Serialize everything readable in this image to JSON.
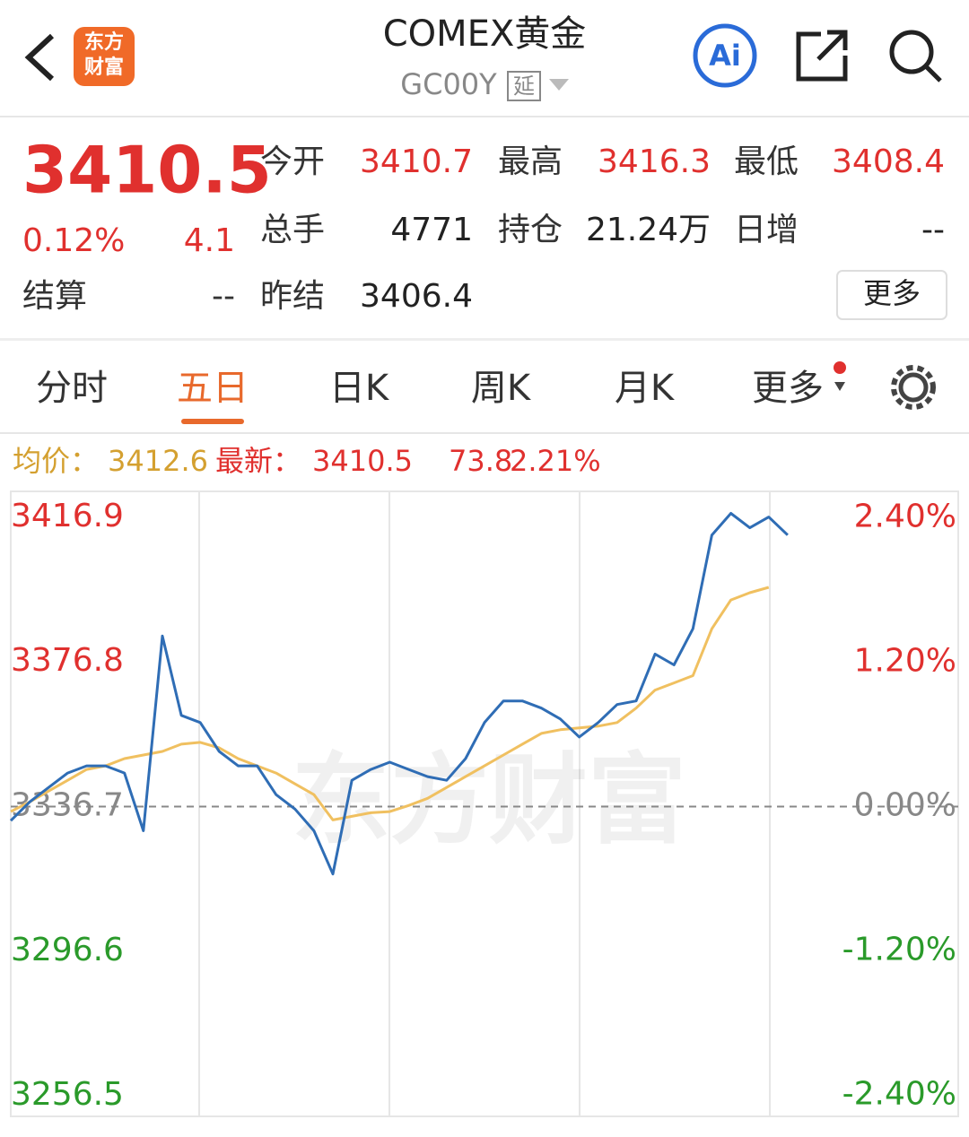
{
  "header": {
    "logo": [
      "东方",
      "财富"
    ],
    "title": "COMEX黄金",
    "code": "GC00Y",
    "delay_badge": "延"
  },
  "quote": {
    "price": "3410.5",
    "change_pct": "0.12%",
    "change": "4.1",
    "settle_label": "结算",
    "settle": "--",
    "fields": [
      {
        "label": "今开",
        "value": "3410.7"
      },
      {
        "label": "最高",
        "value": "3416.3"
      },
      {
        "label": "最低",
        "value": "3408.4"
      },
      {
        "label": "总手",
        "value": "4771"
      },
      {
        "label": "持仓",
        "value": "21.24万"
      },
      {
        "label": "日增",
        "value": "--"
      },
      {
        "label": "昨结",
        "value": "3406.4"
      }
    ],
    "more_button": "更多"
  },
  "tabs": {
    "items": [
      "分时",
      "五日",
      "日K",
      "周K",
      "月K",
      "更多"
    ],
    "active": 1
  },
  "info_bar": {
    "avg_label": "均价：",
    "avg": "3412.6",
    "latest_label": "最新：",
    "latest": "3410.5",
    "change": "73.8",
    "change_pct": "2.21%"
  },
  "chart": {
    "type": "line",
    "watermark": "东方财富",
    "ylim": [
      3250.8,
      3424.1
    ],
    "yticks": [
      3416.9,
      3376.8,
      3336.7,
      3296.6,
      3256.5
    ],
    "y2lim": [
      -2.574,
      2.619
    ],
    "y2ticks": [
      {
        "value": 2.4,
        "label": "2.40%"
      },
      {
        "value": 1.2,
        "label": "1.20%"
      },
      {
        "value": 0,
        "label": "0.00%"
      },
      {
        "value": -1.2,
        "label": "-1.20%"
      },
      {
        "value": -2.4,
        "label": "-2.40%"
      }
    ],
    "series": [
      {
        "name": "最新",
        "color": "#2f6db5",
        "values": [
          3332.8,
          3338,
          3342,
          3346,
          3348,
          3348,
          3346,
          3330,
          3384,
          3362,
          3360,
          3352,
          3348,
          3348,
          3340,
          3336,
          3330,
          3318,
          3344,
          3347,
          3349,
          3347,
          3345,
          3344,
          3350,
          3360,
          3366,
          3366,
          3364,
          3361,
          3356,
          3360,
          3365,
          3366,
          3379,
          3376,
          3386,
          3412,
          3418,
          3414,
          3417,
          3412,
          null,
          null,
          null,
          null,
          null,
          null,
          null,
          null
        ]
      },
      {
        "name": "均价",
        "color": "#f0c060",
        "values": [
          3335.3,
          3338,
          3341,
          3344,
          3347,
          3348,
          3350,
          3351,
          3352,
          3354,
          3354.5,
          3353,
          3350,
          3348,
          3346,
          3343,
          3340,
          3333,
          3334,
          3335,
          3335.3,
          3337,
          3339,
          3342,
          3345,
          3348,
          3351,
          3354,
          3357,
          3358,
          3358.5,
          3359,
          3360,
          3364,
          3369,
          3371,
          3373,
          3386,
          3394,
          3396,
          3397.5,
          null,
          null,
          null,
          null,
          null,
          null,
          null,
          null,
          null
        ]
      }
    ]
  }
}
